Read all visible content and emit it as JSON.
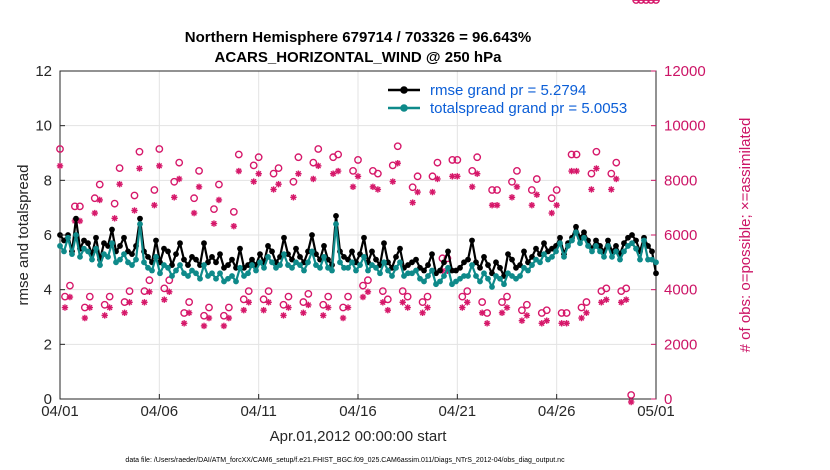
{
  "chart_data": {
    "type": "line",
    "title_line1": "Northern Hemisphere 679714 / 703326 = 96.643%",
    "title_line2": "ACARS_HORIZONTAL_WIND @ 250 hPa",
    "xlabel": "Apr.01,2012 00:00:00 start",
    "ylabel": "rmse and totalspread",
    "ylabel_right": "# of obs: o=possible; ×=assimilated",
    "xlim": [
      0,
      30
    ],
    "ylim": [
      0,
      12
    ],
    "ylim_right": [
      0,
      12000
    ],
    "xtick_values": [
      0,
      5,
      10,
      15,
      20,
      25,
      30
    ],
    "xtick_labels": [
      "04/01",
      "04/06",
      "04/11",
      "04/16",
      "04/21",
      "04/26",
      "05/01"
    ],
    "ytick_values": [
      0,
      2,
      4,
      6,
      8,
      10,
      12
    ],
    "ytick_labels": [
      "0",
      "2",
      "4",
      "6",
      "8",
      "10",
      "12"
    ],
    "ytick_right_values": [
      0,
      2000,
      4000,
      6000,
      8000,
      10000,
      12000
    ],
    "ytick_right_labels": [
      "0",
      "2000",
      "4000",
      "6000",
      "8000",
      "10000",
      "12000"
    ],
    "grid": true,
    "legend_position": "top-right",
    "series": [
      {
        "name": "rmse grand pr = 5.2794",
        "color": "#000000",
        "marker": "filled-circle",
        "values": [
          6.0,
          5.8,
          6.0,
          5.4,
          6.6,
          5.5,
          5.8,
          5.7,
          5.3,
          5.9,
          5.1,
          5.7,
          5.6,
          6.2,
          5.4,
          5.6,
          5.9,
          5.4,
          5.3,
          5.6,
          6.6,
          5.4,
          5.2,
          5.0,
          5.8,
          5.0,
          5.5,
          5.4,
          4.9,
          5.3,
          5.7,
          5.1,
          4.9,
          5.2,
          5.1,
          4.9,
          5.7,
          5.0,
          5.2,
          5.0,
          5.3,
          4.8,
          4.9,
          5.1,
          4.8,
          5.5,
          4.8,
          4.9,
          5.1,
          4.9,
          5.3,
          5.0,
          5.6,
          5.4,
          5.0,
          5.2,
          5.9,
          5.3,
          5.1,
          5.5,
          5.2,
          5.0,
          5.4,
          6.0,
          5.3,
          5.1,
          5.6,
          5.1,
          4.9,
          6.7,
          5.4,
          5.2,
          5.1,
          5.4,
          5.0,
          5.3,
          5.9,
          5.0,
          5.4,
          5.1,
          4.9,
          5.7,
          5.0,
          4.8,
          5.2,
          5.5,
          4.8,
          4.9,
          5.0,
          5.1,
          4.8,
          4.7,
          4.9,
          5.3,
          4.6,
          4.7,
          5.0,
          5.4,
          4.7,
          4.7,
          4.8,
          5.0,
          5.1,
          5.8,
          5.0,
          4.8,
          5.2,
          4.9,
          4.6,
          5.0,
          4.8,
          4.5,
          5.3,
          5.1,
          4.8,
          4.9,
          5.4,
          5.0,
          5.2,
          5.5,
          5.3,
          5.7,
          5.4,
          5.5,
          5.6,
          5.9,
          5.3,
          5.7,
          5.9,
          6.3,
          5.9,
          6.1,
          5.8,
          5.5,
          5.8,
          5.6,
          5.4,
          5.8,
          5.4,
          5.6,
          5.3,
          5.7,
          5.9,
          6.0,
          5.8,
          5.4,
          5.9,
          5.6,
          5.4,
          4.6
        ]
      },
      {
        "name": "totalspread grand pr = 5.0053",
        "color": "#0e8a8a",
        "marker": "filled-circle",
        "values": [
          5.6,
          5.4,
          5.9,
          5.3,
          6.0,
          5.2,
          5.5,
          5.4,
          5.1,
          5.5,
          4.9,
          5.3,
          5.2,
          5.7,
          5.0,
          5.1,
          5.3,
          5.0,
          4.9,
          5.1,
          6.4,
          5.0,
          4.8,
          4.7,
          5.2,
          4.6,
          4.9,
          4.8,
          4.5,
          4.7,
          4.9,
          4.6,
          4.5,
          4.7,
          4.6,
          4.4,
          4.9,
          4.5,
          4.6,
          4.4,
          4.6,
          4.3,
          4.4,
          4.5,
          4.3,
          4.8,
          4.5,
          4.6,
          4.9,
          4.7,
          5.0,
          4.8,
          5.2,
          5.0,
          4.8,
          4.9,
          5.3,
          4.9,
          4.8,
          5.0,
          4.9,
          4.7,
          5.0,
          5.4,
          4.9,
          4.8,
          5.2,
          4.8,
          4.7,
          6.4,
          5.0,
          4.8,
          4.8,
          5.0,
          4.7,
          4.9,
          5.2,
          4.7,
          4.9,
          4.8,
          4.6,
          5.0,
          4.7,
          4.5,
          4.8,
          5.0,
          4.5,
          4.6,
          4.6,
          4.7,
          4.4,
          4.3,
          4.5,
          4.7,
          4.2,
          4.3,
          4.5,
          4.8,
          4.2,
          4.3,
          4.4,
          4.5,
          4.5,
          4.9,
          4.5,
          4.3,
          4.6,
          4.4,
          4.1,
          4.5,
          4.4,
          4.2,
          4.6,
          4.5,
          4.4,
          4.5,
          4.8,
          4.7,
          4.9,
          5.1,
          5.0,
          5.3,
          5.1,
          5.2,
          5.4,
          5.7,
          5.2,
          5.6,
          5.8,
          6.1,
          5.7,
          5.9,
          5.6,
          5.4,
          5.6,
          5.4,
          5.2,
          5.6,
          5.2,
          5.4,
          5.1,
          5.4,
          5.6,
          5.7,
          5.5,
          5.1,
          5.8,
          5.1,
          5.1,
          5.0
        ]
      }
    ],
    "obs_possible_x": [
      0,
      0.25,
      0.5,
      0.75,
      1,
      1.25,
      1.5,
      1.75,
      2,
      2.25,
      2.5,
      2.75,
      3,
      3.25,
      3.5,
      3.75,
      4,
      4.25,
      4.5,
      4.75,
      5,
      5.25,
      5.5,
      5.75,
      6,
      6.25,
      6.5,
      6.75,
      7,
      7.25,
      7.5,
      7.75,
      8,
      8.25,
      8.5,
      8.75,
      9,
      9.25,
      9.5,
      9.75,
      10,
      10.25,
      10.5,
      10.75,
      11,
      11.25,
      11.5,
      11.75,
      12,
      12.25,
      12.5,
      12.75,
      13,
      13.25,
      13.5,
      13.75,
      14,
      14.25,
      14.5,
      14.75,
      15,
      15.25,
      15.5,
      15.75,
      16,
      16.25,
      16.5,
      16.75,
      17,
      17.25,
      17.5,
      17.75,
      18,
      18.25,
      18.5,
      18.75,
      19,
      19.25,
      19.5,
      19.75,
      20,
      20.25,
      20.5,
      20.75,
      21,
      21.25,
      21.5,
      21.75,
      22,
      22.25,
      22.5,
      22.75,
      23,
      23.25,
      23.5,
      23.75,
      24,
      24.25,
      24.5,
      24.75,
      25,
      25.25,
      25.5,
      25.75,
      26,
      26.25,
      26.5,
      26.75,
      27,
      27.25,
      27.5,
      27.75,
      28,
      28.25,
      28.5,
      28.75,
      29,
      29.25,
      29.5,
      29.75,
      30
    ],
    "obs_possible_values": [
      9000,
      3600,
      4000,
      6900,
      6900,
      3200,
      3600,
      7200,
      7700,
      3300,
      3600,
      7000,
      8300,
      3400,
      3800,
      7300,
      8900,
      3800,
      4200,
      7500,
      9000,
      3900,
      4200,
      7800,
      8500,
      3000,
      3400,
      7200,
      8200,
      2900,
      3200,
      6800,
      7700,
      2900,
      3200,
      6700,
      8800,
      3500,
      3800,
      8400,
      8700,
      3500,
      3800,
      8100,
      8300,
      3300,
      3600,
      7800,
      8700,
      3400,
      3700,
      8500,
      9000,
      3300,
      3600,
      8700,
      8800,
      3200,
      3600,
      8200,
      8600,
      4000,
      4200,
      8200,
      8100,
      3800,
      3500,
      8400,
      9100,
      3800,
      3600,
      7600,
      8000,
      3400,
      3600,
      8000,
      8500,
      5000,
      5000,
      8600,
      8600,
      3600,
      3800,
      8200,
      8700,
      3400,
      3000,
      7500,
      7500,
      3400,
      3600,
      7800,
      8200,
      3100,
      3300,
      7500,
      7900,
      3000,
      3100,
      7200,
      7500,
      3000,
      3000,
      8800,
      8800,
      3200,
      3400,
      8100,
      8900,
      3800,
      3900,
      8100,
      8500,
      3800,
      3900,
      0
    ]
  }
}
